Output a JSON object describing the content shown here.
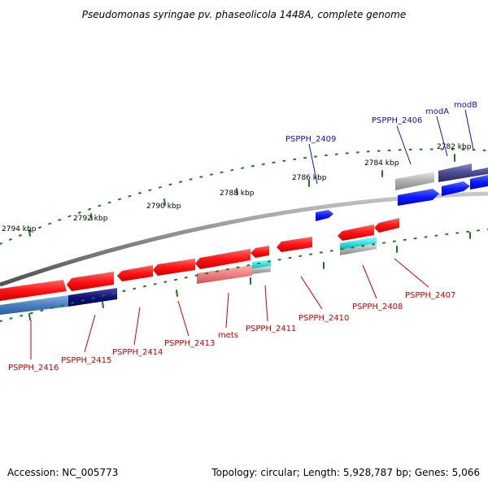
{
  "header": {
    "title": "Pseudomonas syringae pv. phaseolicola 1448A, complete genome"
  },
  "footer": {
    "accession": "Accession: NC_005773",
    "topology": "Topology: circular; Length: 5,928,787 bp; Genes: 5,066"
  },
  "scale_ticks": [
    "2794 kbp",
    "2792 kbp",
    "2790 kbp",
    "2788 kbp",
    "2786 kbp",
    "2784 kbp",
    "2782 kbp"
  ],
  "genes_top": [
    "PSPPH_2409",
    "PSPPH_2406",
    "modA",
    "modB"
  ],
  "genes_bottom": [
    "PSPPH_2416",
    "PSPPH_2415",
    "PSPPH_2414",
    "PSPPH_2413",
    "mets",
    "PSPPH_2411",
    "PSPPH_2410",
    "PSPPH_2408",
    "PSPPH_2407"
  ],
  "colors": {
    "forward_gene": "#0a1aff",
    "reverse_gene": "#ff1010",
    "pseudo_gene": "#f08080",
    "rna_gene": "#30e0e0",
    "backbone": "#8a8a8a",
    "tick": "#1a7a1a",
    "top_label": "#1010cc",
    "bottom_label": "#cc0000"
  }
}
